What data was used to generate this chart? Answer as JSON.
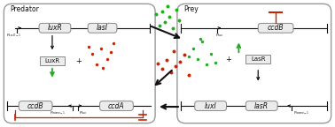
{
  "black": "#111111",
  "red": "#cc2200",
  "green": "#22aa22",
  "gray_ec": "#888888",
  "gray_fc": "#ececec",
  "white": "#ffffff",
  "predator_label": "Predator",
  "prey_label": "Prey",
  "protein_predator": "LuxR",
  "protein_prey": "LasR",
  "gene_luxR": "luxR",
  "gene_lasI": "lasI",
  "gene_ccdB_pred": "ccdB",
  "gene_ccdA": "ccdA",
  "gene_ccdB_prey": "ccdB",
  "gene_luxI": "luxI",
  "gene_lasR": "lasR",
  "prom_pred_top": "$P_{LasO-1}$",
  "prom_pred_bot1": "$P_{lasrne-1}$",
  "prom_pred_bot2": "$P_{lux}$",
  "prom_prey_top": "$P_{lux}$",
  "prom_prey_bot": "$P_{lasrne-1}$",
  "plus": "+"
}
